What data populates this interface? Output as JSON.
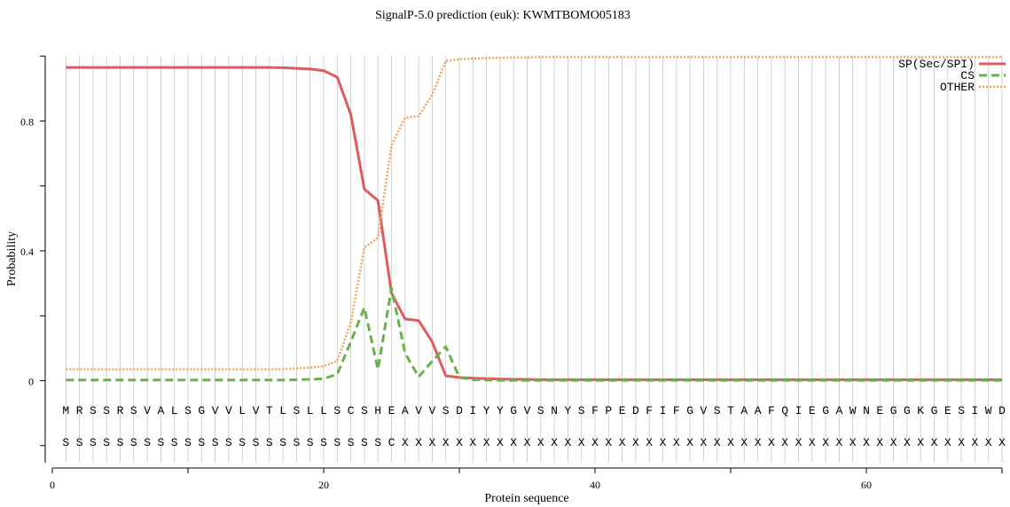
{
  "chart_data": {
    "type": "line",
    "title": "SignalP-5.0 prediction (euk):  KWMTBOMO05183",
    "xlabel": "Protein sequence",
    "ylabel": "Probability",
    "xlim": [
      0,
      70
    ],
    "ylim": [
      -0.25,
      1.0
    ],
    "x_ticks": [
      0,
      20,
      40,
      60
    ],
    "x_tick_labels": [
      "0",
      "20",
      "40",
      "60"
    ],
    "y_ticks": [
      0,
      0.4,
      0.8
    ],
    "y_tick_labels": [
      "0",
      "0.4",
      "0.8"
    ],
    "grid": "vertical lines at each residue",
    "legend_position": "top-right",
    "sequence": [
      "M",
      "R",
      "S",
      "S",
      "R",
      "S",
      "V",
      "A",
      "L",
      "S",
      "G",
      "V",
      "V",
      "L",
      "V",
      "T",
      "L",
      "S",
      "L",
      "L",
      "S",
      "C",
      "S",
      "H",
      "E",
      "A",
      "V",
      "V",
      "S",
      "D",
      "I",
      "Y",
      "Y",
      "G",
      "V",
      "S",
      "N",
      "Y",
      "S",
      "F",
      "P",
      "E",
      "D",
      "F",
      "I",
      "F",
      "G",
      "V",
      "S",
      "T",
      "A",
      "A",
      "F",
      "Q",
      "I",
      "E",
      "G",
      "A",
      "W",
      "N",
      "E",
      "G",
      "G",
      "K",
      "G",
      "E",
      "S",
      "I",
      "W",
      "D"
    ],
    "annotation": [
      "S",
      "S",
      "S",
      "S",
      "S",
      "S",
      "S",
      "S",
      "S",
      "S",
      "S",
      "S",
      "S",
      "S",
      "S",
      "S",
      "S",
      "S",
      "S",
      "S",
      "S",
      "S",
      "S",
      "S",
      "C",
      "X",
      "X",
      "X",
      "X",
      "X",
      "X",
      "X",
      "X",
      "X",
      "X",
      "X",
      "X",
      "X",
      "X",
      "X",
      "X",
      "X",
      "X",
      "X",
      "X",
      "X",
      "X",
      "X",
      "X",
      "X",
      "X",
      "X",
      "X",
      "X",
      "X",
      "X",
      "X",
      "X",
      "X",
      "X",
      "X",
      "X",
      "X",
      "X",
      "X",
      "X",
      "X",
      "X",
      "X",
      "X"
    ],
    "series": [
      {
        "name": "SP(Sec/SPI)",
        "color": "#e05a5f",
        "style": "solid",
        "values": [
          0.965,
          0.965,
          0.965,
          0.965,
          0.965,
          0.965,
          0.965,
          0.965,
          0.965,
          0.965,
          0.965,
          0.965,
          0.965,
          0.965,
          0.965,
          0.965,
          0.964,
          0.962,
          0.96,
          0.955,
          0.935,
          0.82,
          0.59,
          0.555,
          0.27,
          0.19,
          0.185,
          0.12,
          0.015,
          0.01,
          0.008,
          0.006,
          0.005,
          0.004,
          0.004,
          0.003,
          0.003,
          0.003,
          0.003,
          0.003,
          0.003,
          0.003,
          0.003,
          0.003,
          0.003,
          0.003,
          0.003,
          0.003,
          0.003,
          0.003,
          0.003,
          0.003,
          0.003,
          0.003,
          0.003,
          0.003,
          0.003,
          0.003,
          0.003,
          0.003,
          0.003,
          0.003,
          0.003,
          0.003,
          0.003,
          0.003,
          0.003,
          0.003,
          0.003,
          0.003
        ]
      },
      {
        "name": "CS",
        "color": "#6ab04c",
        "style": "dashed",
        "values": [
          0.002,
          0.002,
          0.002,
          0.002,
          0.002,
          0.002,
          0.002,
          0.002,
          0.002,
          0.002,
          0.002,
          0.002,
          0.002,
          0.002,
          0.002,
          0.002,
          0.002,
          0.003,
          0.004,
          0.006,
          0.02,
          0.12,
          0.225,
          0.035,
          0.285,
          0.085,
          0.012,
          0.06,
          0.105,
          0.01,
          0.003,
          0.002,
          0.001,
          0.001,
          0.001,
          0.001,
          0.001,
          0.001,
          0.001,
          0.001,
          0.001,
          0.001,
          0.001,
          0.001,
          0.001,
          0.001,
          0.001,
          0.001,
          0.001,
          0.001,
          0.001,
          0.001,
          0.001,
          0.001,
          0.001,
          0.001,
          0.001,
          0.001,
          0.001,
          0.001,
          0.001,
          0.001,
          0.001,
          0.001,
          0.001,
          0.001,
          0.001,
          0.001,
          0.001,
          0.001
        ]
      },
      {
        "name": "OTHER",
        "color": "#f5a25d",
        "style": "dotted",
        "values": [
          0.035,
          0.035,
          0.035,
          0.035,
          0.035,
          0.035,
          0.035,
          0.035,
          0.035,
          0.035,
          0.035,
          0.035,
          0.035,
          0.035,
          0.035,
          0.035,
          0.036,
          0.038,
          0.04,
          0.045,
          0.06,
          0.18,
          0.41,
          0.44,
          0.725,
          0.81,
          0.815,
          0.88,
          0.985,
          0.99,
          0.992,
          0.994,
          0.995,
          0.996,
          0.996,
          0.997,
          0.997,
          0.997,
          0.997,
          0.997,
          0.997,
          0.997,
          0.997,
          0.997,
          0.997,
          0.997,
          0.997,
          0.997,
          0.997,
          0.997,
          0.997,
          0.997,
          0.997,
          0.997,
          0.997,
          0.997,
          0.997,
          0.997,
          0.997,
          0.997,
          0.997,
          0.997,
          0.997,
          0.997,
          0.997,
          0.997,
          0.997,
          0.997,
          0.997,
          0.997
        ]
      }
    ]
  }
}
